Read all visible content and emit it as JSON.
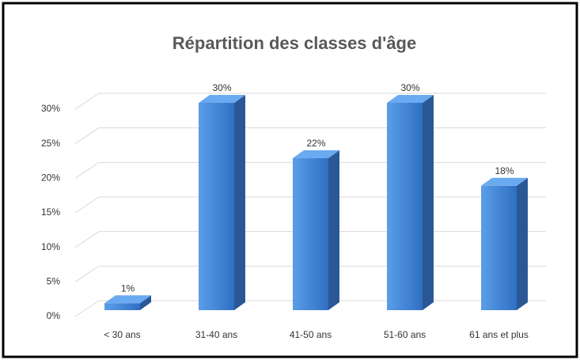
{
  "chart_data": {
    "type": "bar3d",
    "title": "Répartition des classes d'âge",
    "categories": [
      "< 30 ans",
      "31-40 ans",
      "41-50 ans",
      "51-60 ans",
      "61 ans et plus"
    ],
    "values": [
      1,
      30,
      22,
      30,
      18
    ],
    "value_labels": [
      "1%",
      "30%",
      "22%",
      "30%",
      "18%"
    ],
    "color": "#3d85d8",
    "ylim": [
      0,
      30
    ],
    "yticks": [
      {
        "value": 0,
        "label": "0%"
      },
      {
        "value": 5,
        "label": "5%"
      },
      {
        "value": 10,
        "label": "10%"
      },
      {
        "value": 15,
        "label": "15%"
      },
      {
        "value": 20,
        "label": "20%"
      },
      {
        "value": 25,
        "label": "25%"
      },
      {
        "value": 30,
        "label": "30%"
      }
    ],
    "grid": true
  }
}
